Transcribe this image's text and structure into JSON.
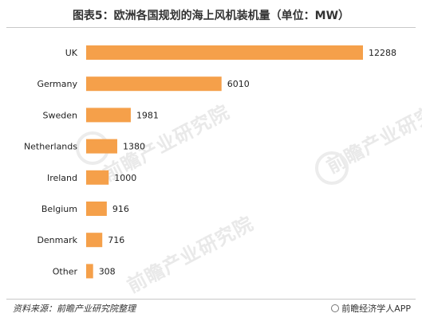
{
  "title": "图表5：欧洲各国规划的海上风机装机量（单位：MW）",
  "source": "资料来源：前瞻产业研究院整理",
  "brand": "前瞻经济学人APP",
  "watermark": "前瞻产业研究院",
  "colors": {
    "bar": "#F5A04A"
  },
  "chart_data": {
    "type": "bar",
    "orientation": "horizontal",
    "categories": [
      "UK",
      "Germany",
      "Sweden",
      "Netherlands",
      "Ireland",
      "Belgium",
      "Denmark",
      "Other"
    ],
    "values": [
      12288,
      6010,
      1981,
      1380,
      1000,
      916,
      716,
      308
    ],
    "title": "图表5：欧洲各国规划的海上风机装机量（单位：MW）",
    "xlabel": "",
    "ylabel": "",
    "xlim": [
      0,
      12288
    ],
    "grid": false,
    "data_labels": true
  }
}
